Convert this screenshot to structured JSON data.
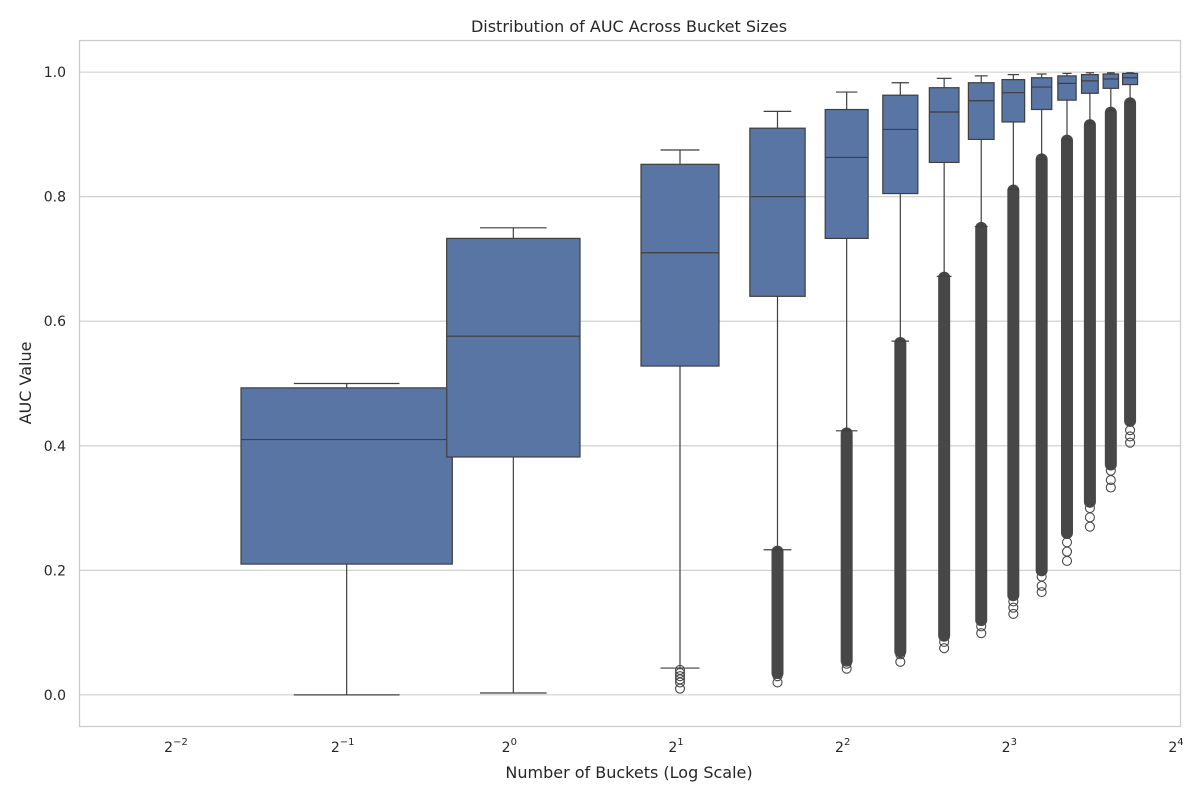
{
  "chart_data": {
    "type": "box",
    "title": "Distribution of AUC Across Bucket Sizes",
    "xlabel": "Number of Buckets (Log Scale)",
    "ylabel": "AUC Value",
    "xscale": "log2",
    "xlim_log2": [
      -2.6,
      4.0
    ],
    "ylim": [
      -0.05,
      1.05
    ],
    "grid": true,
    "x_ticks": [
      {
        "base": "2",
        "exp": "−2",
        "log2": -2
      },
      {
        "base": "2",
        "exp": "−1",
        "log2": -1
      },
      {
        "base": "2",
        "exp": "0",
        "log2": 0
      },
      {
        "base": "2",
        "exp": "1",
        "log2": 1
      },
      {
        "base": "2",
        "exp": "2",
        "log2": 2
      },
      {
        "base": "2",
        "exp": "3",
        "log2": 3
      },
      {
        "base": "2",
        "exp": "4",
        "log2": 4
      }
    ],
    "y_ticks": [
      "0.0",
      "0.2",
      "0.4",
      "0.6",
      "0.8",
      "1.0"
    ],
    "y_tick_values": [
      0.0,
      0.2,
      0.4,
      0.6,
      0.8,
      1.0
    ],
    "colors": {
      "box_fill": "#5875a4",
      "line": "#3f3f3f",
      "flier": "#474747",
      "grid": "#cccccc"
    },
    "boxes": [
      {
        "buckets": 0.5,
        "q1": 0.21,
        "median": 0.41,
        "q3": 0.493,
        "whisker_low": 0.0,
        "whisker_high": 0.5,
        "fliers_low": [],
        "flier_band_low": null
      },
      {
        "buckets": 1.0,
        "q1": 0.382,
        "median": 0.576,
        "q3": 0.733,
        "whisker_low": 0.003,
        "whisker_high": 0.75,
        "fliers_low": [],
        "flier_band_low": null
      },
      {
        "buckets": 2.0,
        "q1": 0.528,
        "median": 0.71,
        "q3": 0.852,
        "whisker_low": 0.043,
        "whisker_high": 0.875,
        "fliers_low": [
          0.01,
          0.02,
          0.025,
          0.03,
          0.035,
          0.04
        ],
        "flier_band_low": null
      },
      {
        "buckets": 3.0,
        "q1": 0.64,
        "median": 0.8,
        "q3": 0.91,
        "whisker_low": 0.233,
        "whisker_high": 0.937,
        "fliers_low": [
          0.02,
          0.03
        ],
        "flier_band_low": [
          0.035,
          0.23
        ]
      },
      {
        "buckets": 4.0,
        "q1": 0.733,
        "median": 0.863,
        "q3": 0.94,
        "whisker_low": 0.424,
        "whisker_high": 0.968,
        "fliers_low": [
          0.042,
          0.05
        ],
        "flier_band_low": [
          0.055,
          0.42
        ]
      },
      {
        "buckets": 5.0,
        "q1": 0.805,
        "median": 0.908,
        "q3": 0.963,
        "whisker_low": 0.568,
        "whisker_high": 0.983,
        "fliers_low": [
          0.053,
          0.065
        ],
        "flier_band_low": [
          0.07,
          0.565
        ]
      },
      {
        "buckets": 6.0,
        "q1": 0.855,
        "median": 0.936,
        "q3": 0.975,
        "whisker_low": 0.672,
        "whisker_high": 0.99,
        "fliers_low": [
          0.075,
          0.085
        ],
        "flier_band_low": [
          0.095,
          0.67
        ]
      },
      {
        "buckets": 7.0,
        "q1": 0.892,
        "median": 0.954,
        "q3": 0.983,
        "whisker_low": 0.752,
        "whisker_high": 0.994,
        "fliers_low": [
          0.099,
          0.11
        ],
        "flier_band_low": [
          0.12,
          0.75
        ]
      },
      {
        "buckets": 8.0,
        "q1": 0.92,
        "median": 0.967,
        "q3": 0.988,
        "whisker_low": 0.812,
        "whisker_high": 0.996,
        "fliers_low": [
          0.13,
          0.14,
          0.15
        ],
        "flier_band_low": [
          0.16,
          0.81
        ]
      },
      {
        "buckets": 9.0,
        "q1": 0.94,
        "median": 0.976,
        "q3": 0.991,
        "whisker_low": 0.86,
        "whisker_high": 0.997,
        "fliers_low": [
          0.165,
          0.175,
          0.19
        ],
        "flier_band_low": [
          0.2,
          0.86
        ]
      },
      {
        "buckets": 10.0,
        "q1": 0.955,
        "median": 0.982,
        "q3": 0.994,
        "whisker_low": 0.892,
        "whisker_high": 0.998,
        "fliers_low": [
          0.215,
          0.23,
          0.245
        ],
        "flier_band_low": [
          0.26,
          0.89
        ]
      },
      {
        "buckets": 11.0,
        "q1": 0.966,
        "median": 0.986,
        "q3": 0.996,
        "whisker_low": 0.918,
        "whisker_high": 0.999,
        "fliers_low": [
          0.27,
          0.285,
          0.3
        ],
        "flier_band_low": [
          0.31,
          0.915
        ]
      },
      {
        "buckets": 12.0,
        "q1": 0.974,
        "median": 0.989,
        "q3": 0.997,
        "whisker_low": 0.938,
        "whisker_high": 0.999,
        "fliers_low": [
          0.333,
          0.345,
          0.36
        ],
        "flier_band_low": [
          0.37,
          0.935
        ]
      },
      {
        "buckets": 13.0,
        "q1": 0.98,
        "median": 0.991,
        "q3": 0.998,
        "whisker_low": 0.952,
        "whisker_high": 0.999,
        "fliers_low": [
          0.405,
          0.415,
          0.425
        ],
        "flier_band_low": [
          0.44,
          0.95
        ]
      }
    ]
  }
}
